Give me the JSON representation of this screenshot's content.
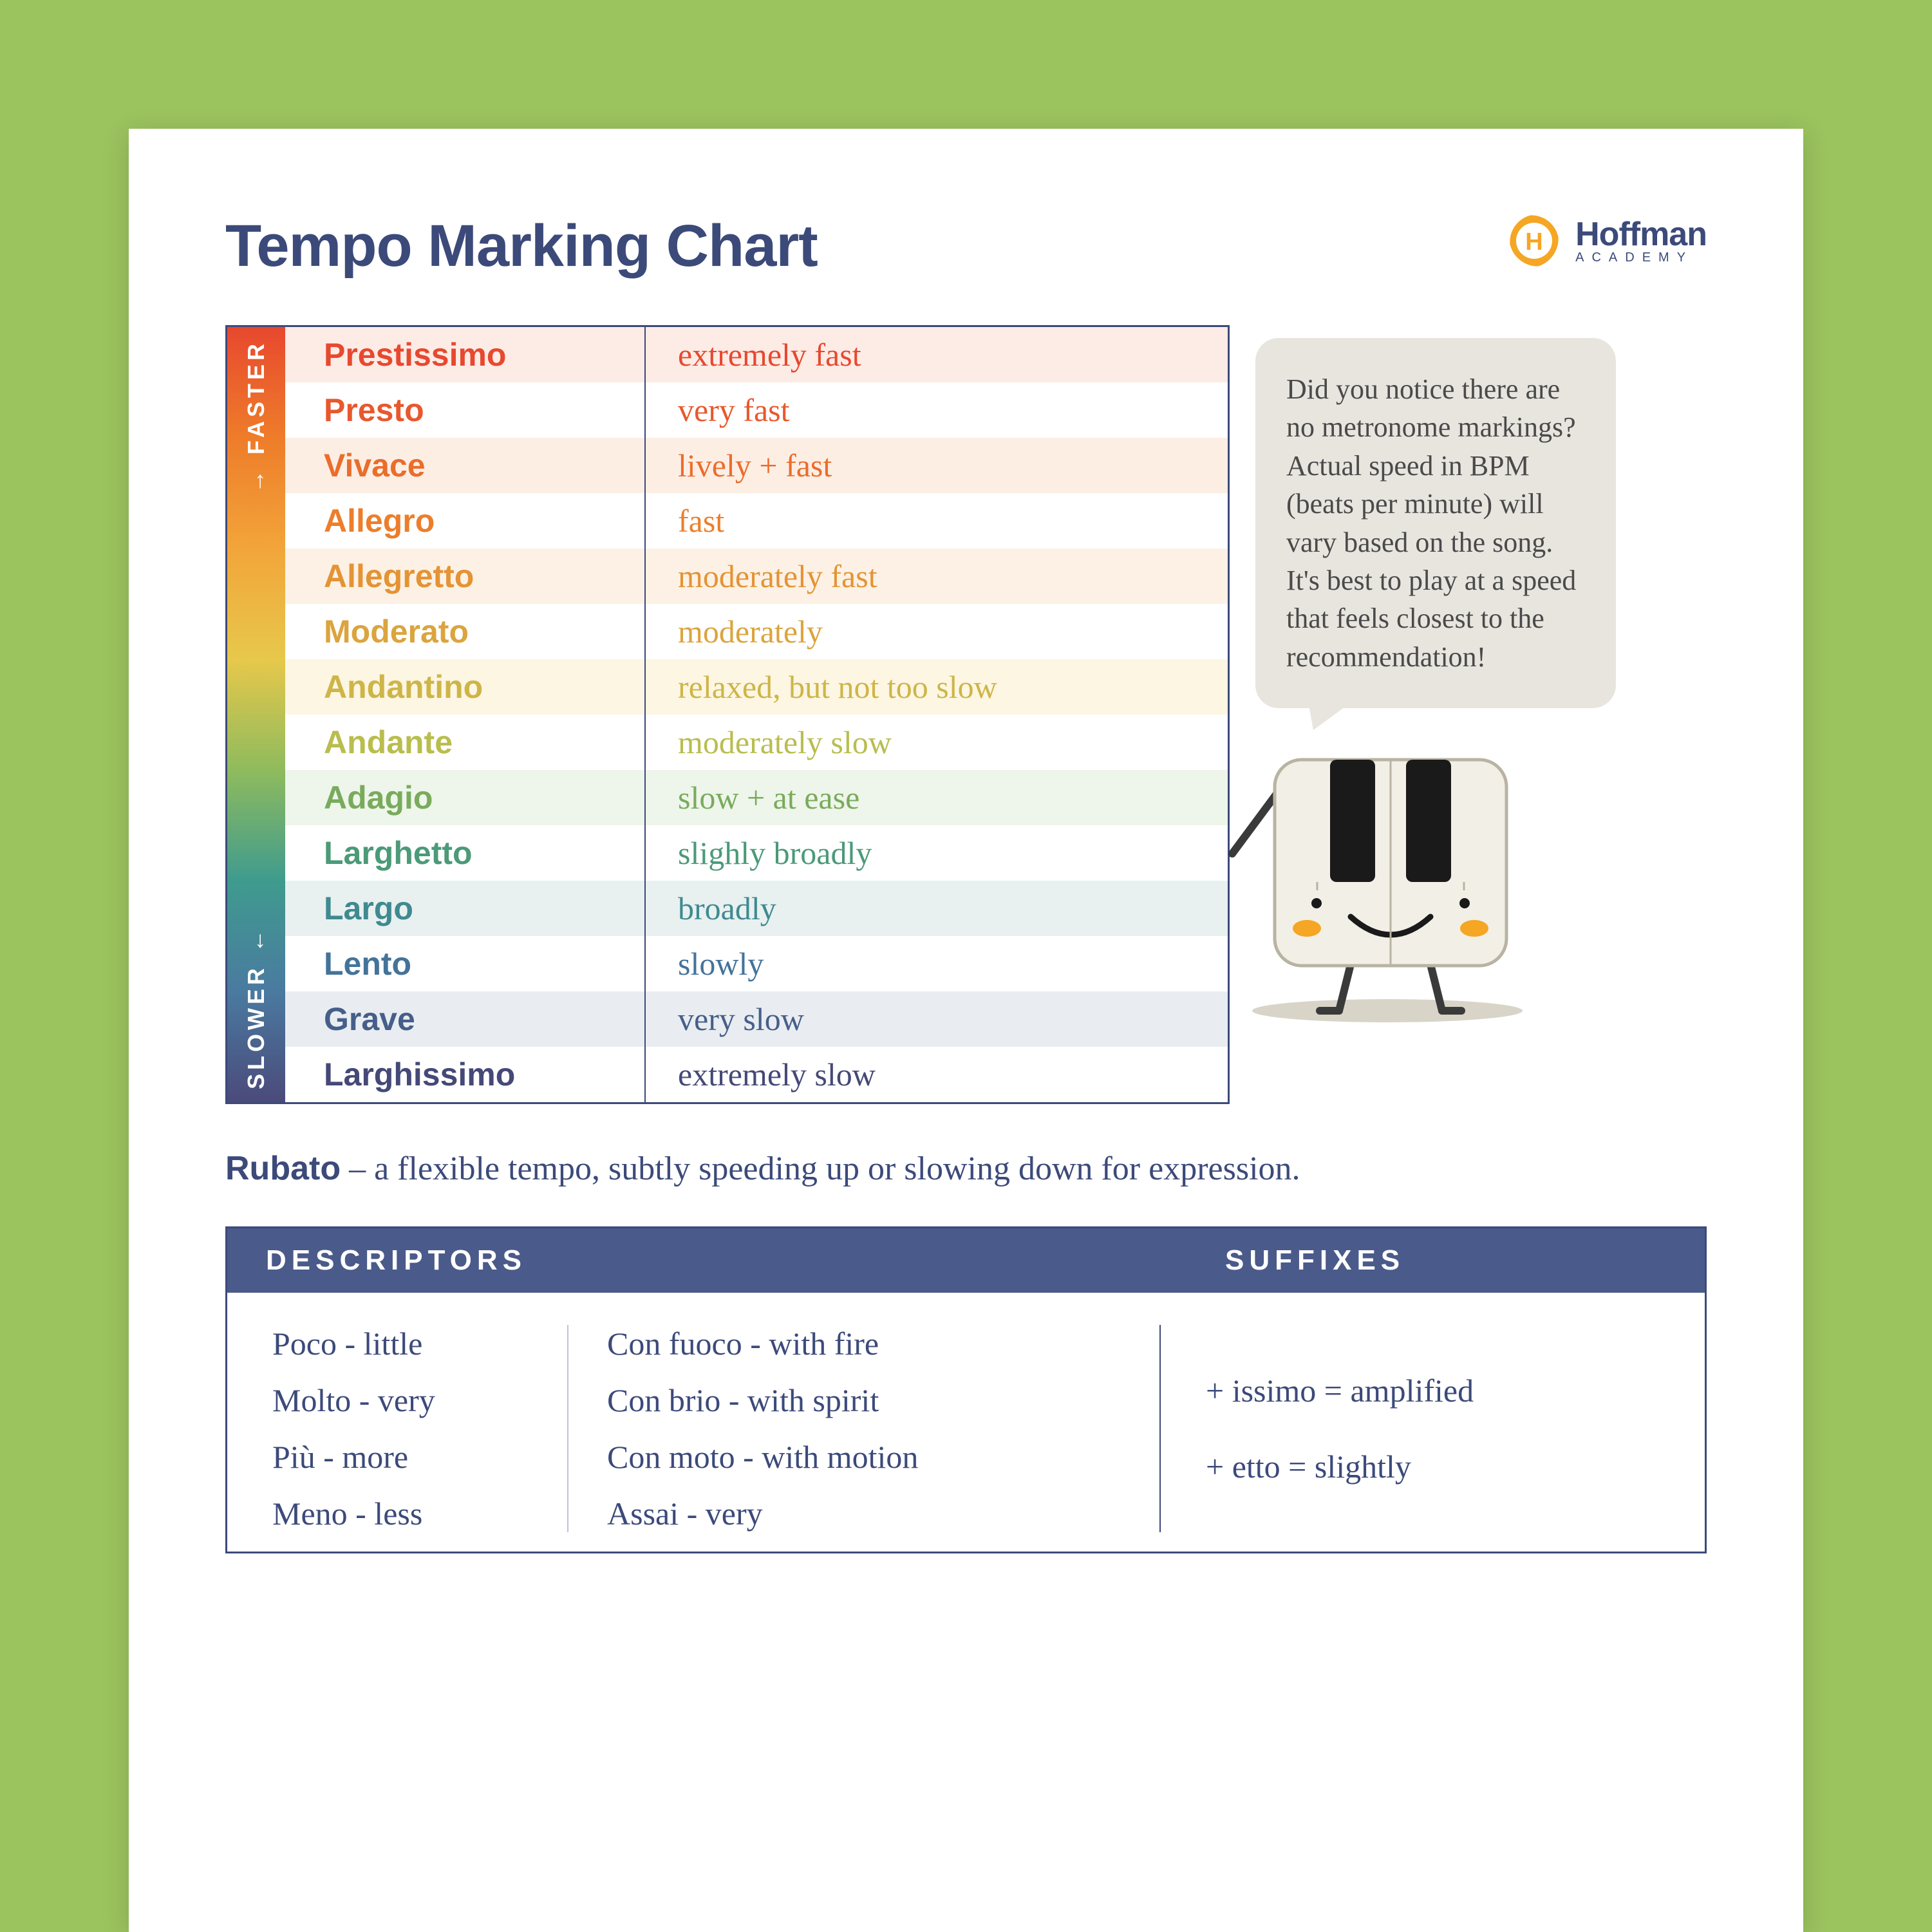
{
  "title": "Tempo Marking Chart",
  "logo": {
    "brand": "Hoffman",
    "sub": "ACADEMY",
    "icon_fill": "#f5a623",
    "icon_letter": "H"
  },
  "gradient": {
    "faster_label": "FASTER",
    "slower_label": "SLOWER",
    "stops": [
      "#e8482e",
      "#ee7c2a",
      "#f2a53a",
      "#e7c84b",
      "#8fbb5d",
      "#3f9b8e",
      "#4a7aa0",
      "#4b4a7a"
    ]
  },
  "tempo_rows": [
    {
      "term": "Prestissimo",
      "desc": "extremely fast",
      "color": "#e7492f",
      "bg": "#fdebe5"
    },
    {
      "term": "Presto",
      "desc": "very fast",
      "color": "#e8582e",
      "bg": "#ffffff"
    },
    {
      "term": "Vivace",
      "desc": "lively + fast",
      "color": "#ea6d2c",
      "bg": "#fdeee4"
    },
    {
      "term": "Allegro",
      "desc": "fast",
      "color": "#ec7e2b",
      "bg": "#ffffff"
    },
    {
      "term": "Allegretto",
      "desc": "moderately fast",
      "color": "#e49335",
      "bg": "#fcf1e4"
    },
    {
      "term": "Moderato",
      "desc": "moderately",
      "color": "#dba43e",
      "bg": "#ffffff"
    },
    {
      "term": "Andantino",
      "desc": "relaxed, but not too slow",
      "color": "#ceb548",
      "bg": "#fcf6e2"
    },
    {
      "term": "Andante",
      "desc": "moderately slow",
      "color": "#b9bd4e",
      "bg": "#ffffff"
    },
    {
      "term": "Adagio",
      "desc": "slow + at ease",
      "color": "#79ab5c",
      "bg": "#eef5ea"
    },
    {
      "term": "Larghetto",
      "desc": "slighly broadly",
      "color": "#4b9a78",
      "bg": "#ffffff"
    },
    {
      "term": "Largo",
      "desc": "broadly",
      "color": "#3f8a90",
      "bg": "#e8f0f0"
    },
    {
      "term": "Lento",
      "desc": "slowly",
      "color": "#44739a",
      "bg": "#ffffff"
    },
    {
      "term": "Grave",
      "desc": "very slow",
      "color": "#465e8a",
      "bg": "#e9edf1"
    },
    {
      "term": "Larghissimo",
      "desc": "extremely slow",
      "color": "#454977",
      "bg": "#ffffff"
    }
  ],
  "speech_text": "Did you notice there are no metronome markings? Actual speed in BPM (beats per minute) will vary based on the song. It's best to play at a speed that feels closest to the recommendation!",
  "rubato": {
    "label": "Rubato",
    "sep": " –  ",
    "text": "a flexible tempo, subtly speeding up or slowing down for expression."
  },
  "lower": {
    "header_desc": "DESCRIPTORS",
    "header_suf": "SUFFIXES",
    "col_a": [
      "Poco - little",
      "Molto - very",
      "Più - more",
      "Meno - less"
    ],
    "col_b": [
      "Con fuoco - with fire",
      "Con brio - with spirit",
      "Con moto - with motion",
      "Assai - very"
    ],
    "col_c": [
      "+ issimo = amplified",
      "+ etto = slightly"
    ]
  },
  "mascot": {
    "body_fill": "#f2efe6",
    "body_stroke": "#b8b3a2",
    "key_color": "#1a1a1a",
    "cheek_color": "#f5a623",
    "leg_color": "#3a3a3a"
  }
}
